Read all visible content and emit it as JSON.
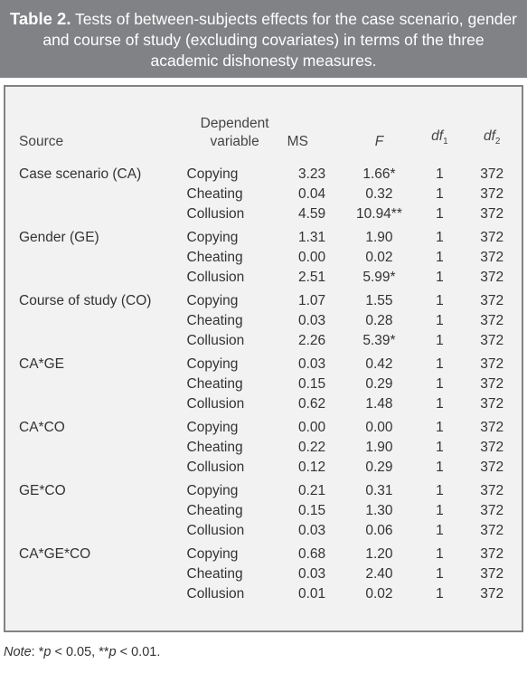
{
  "caption": {
    "label": "Table 2.",
    "text": "Tests of between-subjects effects for the case scenario, gender and course of study (excluding covariates) in terms of the three academic dishonesty measures."
  },
  "headers": {
    "source": "Source",
    "dependent": "Dependent variable",
    "ms": "MS",
    "f": "F",
    "df1": "df1",
    "df2": "df2"
  },
  "groups": [
    {
      "source": "Case scenario (CA)",
      "rows": [
        {
          "dep": "Copying",
          "ms": "3.23",
          "f": "1.66*",
          "df1": "1",
          "df2": "372"
        },
        {
          "dep": "Cheating",
          "ms": "0.04",
          "f": "0.32",
          "df1": "1",
          "df2": "372"
        },
        {
          "dep": "Collusion",
          "ms": "4.59",
          "f": "10.94**",
          "df1": "1",
          "df2": "372"
        }
      ]
    },
    {
      "source": "Gender (GE)",
      "rows": [
        {
          "dep": "Copying",
          "ms": "1.31",
          "f": "1.90",
          "df1": "1",
          "df2": "372"
        },
        {
          "dep": "Cheating",
          "ms": "0.00",
          "f": "0.02",
          "df1": "1",
          "df2": "372"
        },
        {
          "dep": "Collusion",
          "ms": "2.51",
          "f": "5.99*",
          "df1": "1",
          "df2": "372"
        }
      ]
    },
    {
      "source": "Course of study (CO)",
      "rows": [
        {
          "dep": "Copying",
          "ms": "1.07",
          "f": "1.55",
          "df1": "1",
          "df2": "372"
        },
        {
          "dep": "Cheating",
          "ms": "0.03",
          "f": "0.28",
          "df1": "1",
          "df2": "372"
        },
        {
          "dep": "Collusion",
          "ms": "2.26",
          "f": "5.39*",
          "df1": "1",
          "df2": "372"
        }
      ]
    },
    {
      "source": "CA*GE",
      "rows": [
        {
          "dep": "Copying",
          "ms": "0.03",
          "f": "0.42",
          "df1": "1",
          "df2": "372"
        },
        {
          "dep": "Cheating",
          "ms": "0.15",
          "f": "0.29",
          "df1": "1",
          "df2": "372"
        },
        {
          "dep": "Collusion",
          "ms": "0.62",
          "f": "1.48",
          "df1": "1",
          "df2": "372"
        }
      ]
    },
    {
      "source": "CA*CO",
      "rows": [
        {
          "dep": "Copying",
          "ms": "0.00",
          "f": "0.00",
          "df1": "1",
          "df2": "372"
        },
        {
          "dep": "Cheating",
          "ms": "0.22",
          "f": "1.90",
          "df1": "1",
          "df2": "372"
        },
        {
          "dep": "Collusion",
          "ms": "0.12",
          "f": "0.29",
          "df1": "1",
          "df2": "372"
        }
      ]
    },
    {
      "source": "GE*CO",
      "rows": [
        {
          "dep": "Copying",
          "ms": "0.21",
          "f": "0.31",
          "df1": "1",
          "df2": "372"
        },
        {
          "dep": "Cheating",
          "ms": "0.15",
          "f": "1.30",
          "df1": "1",
          "df2": "372"
        },
        {
          "dep": "Collusion",
          "ms": "0.03",
          "f": "0.06",
          "df1": "1",
          "df2": "372"
        }
      ]
    },
    {
      "source": "CA*GE*CO",
      "rows": [
        {
          "dep": "Copying",
          "ms": "0.68",
          "f": "1.20",
          "df1": "1",
          "df2": "372"
        },
        {
          "dep": "Cheating",
          "ms": "0.03",
          "f": "2.40",
          "df1": "1",
          "df2": "372"
        },
        {
          "dep": "Collusion",
          "ms": "0.01",
          "f": "0.02",
          "df1": "1",
          "df2": "372"
        }
      ]
    }
  ],
  "note": "Note: *p < 0.05, **p < 0.01."
}
